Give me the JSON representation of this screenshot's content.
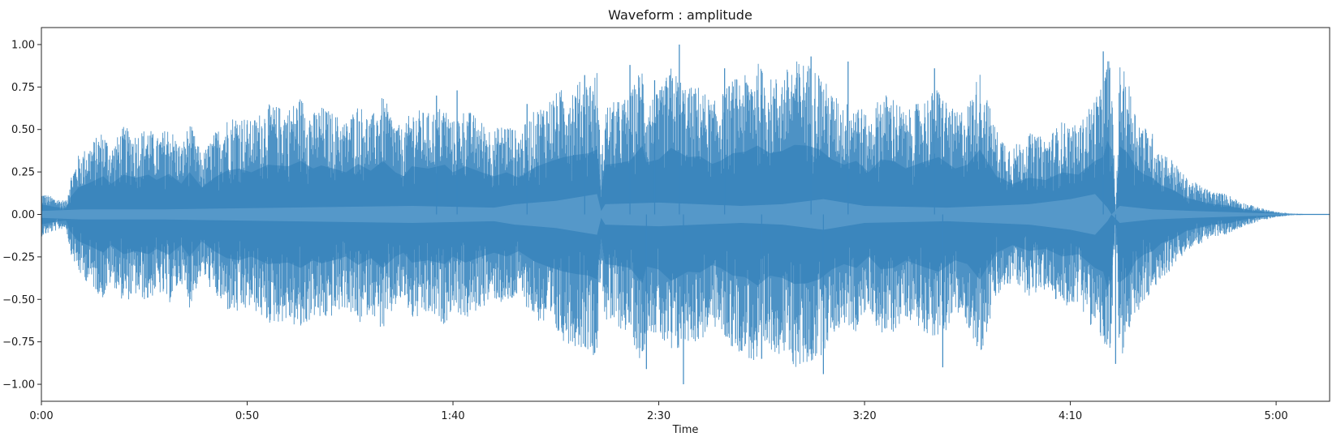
{
  "chart_data": {
    "type": "area",
    "title": "Waveform : amplitude",
    "xlabel": "Time",
    "ylabel": "",
    "x_unit": "seconds",
    "xlim": [
      0,
      313
    ],
    "ylim": [
      -1.1,
      1.1
    ],
    "x_ticks": [
      {
        "value": 0,
        "label": "0:00"
      },
      {
        "value": 50,
        "label": "0:50"
      },
      {
        "value": 100,
        "label": "1:40"
      },
      {
        "value": 150,
        "label": "2:30"
      },
      {
        "value": 200,
        "label": "3:20"
      },
      {
        "value": 250,
        "label": "4:10"
      },
      {
        "value": 300,
        "label": "5:00"
      }
    ],
    "y_ticks": [
      {
        "value": 1.0,
        "label": "1.00"
      },
      {
        "value": 0.75,
        "label": "0.75"
      },
      {
        "value": 0.5,
        "label": "0.50"
      },
      {
        "value": 0.25,
        "label": "0.25"
      },
      {
        "value": 0.0,
        "label": "0.00"
      },
      {
        "value": -0.25,
        "label": "−0.25"
      },
      {
        "value": -0.5,
        "label": "−0.50"
      },
      {
        "value": -0.75,
        "label": "−0.75"
      },
      {
        "value": -1.0,
        "label": "−1.00"
      }
    ],
    "grid": false,
    "series": [
      {
        "color": "#3a86bf",
        "envelope": {
          "x": [
            0,
            3,
            6,
            7,
            9,
            12,
            15,
            17,
            20,
            23,
            26,
            28,
            31,
            34,
            36,
            39,
            42,
            45,
            48,
            51,
            55,
            60,
            63,
            66,
            68,
            71,
            74,
            77,
            80,
            83,
            86,
            88,
            90,
            94,
            98,
            100,
            103,
            107,
            110,
            113,
            116,
            120,
            124,
            127,
            130,
            133,
            135,
            136,
            137,
            140,
            143,
            146,
            147,
            150,
            153,
            157,
            160,
            163,
            165,
            168,
            171,
            174,
            177,
            180,
            183,
            186,
            189,
            192,
            195,
            198,
            201,
            204,
            207,
            210,
            214,
            218,
            222,
            225,
            228,
            232,
            236,
            240,
            244,
            248,
            252,
            256,
            258,
            259,
            260,
            261,
            262,
            264,
            266,
            268,
            270,
            272,
            275,
            278,
            281,
            284,
            288,
            292,
            296,
            300,
            304,
            308,
            313
          ],
          "upper": [
            0.13,
            0.1,
            0.08,
            0.22,
            0.35,
            0.42,
            0.5,
            0.4,
            0.52,
            0.48,
            0.52,
            0.45,
            0.53,
            0.4,
            0.55,
            0.35,
            0.48,
            0.57,
            0.6,
            0.55,
            0.65,
            0.63,
            0.7,
            0.6,
            0.64,
            0.6,
            0.55,
            0.66,
            0.57,
            0.7,
            0.55,
            0.5,
            0.63,
            0.6,
            0.65,
            0.55,
            0.63,
            0.55,
            0.5,
            0.55,
            0.48,
            0.62,
            0.7,
            0.75,
            0.78,
            0.8,
            0.85,
            0.3,
            0.65,
            0.67,
            0.7,
            0.9,
            0.68,
            0.72,
            0.87,
            0.75,
            0.76,
            0.66,
            0.7,
            0.8,
            0.82,
            0.9,
            0.8,
            0.83,
            0.91,
            0.9,
            0.85,
            0.72,
            0.65,
            0.7,
            0.55,
            0.72,
            0.7,
            0.6,
            0.68,
            0.75,
            0.6,
            0.65,
            0.85,
            0.5,
            0.4,
            0.48,
            0.45,
            0.55,
            0.52,
            0.7,
            0.75,
            0.96,
            0.85,
            0.0,
            0.89,
            0.8,
            0.6,
            0.52,
            0.48,
            0.38,
            0.32,
            0.22,
            0.18,
            0.14,
            0.12,
            0.07,
            0.04,
            0.015,
            0.005,
            0.002,
            0.0
          ],
          "lower": [
            -0.13,
            -0.1,
            -0.08,
            -0.22,
            -0.35,
            -0.42,
            -0.5,
            -0.4,
            -0.52,
            -0.48,
            -0.52,
            -0.45,
            -0.53,
            -0.4,
            -0.55,
            -0.35,
            -0.48,
            -0.57,
            -0.6,
            -0.55,
            -0.65,
            -0.63,
            -0.7,
            -0.6,
            -0.64,
            -0.6,
            -0.55,
            -0.66,
            -0.57,
            -0.7,
            -0.55,
            -0.5,
            -0.63,
            -0.6,
            -0.65,
            -0.55,
            -0.63,
            -0.55,
            -0.5,
            -0.55,
            -0.48,
            -0.62,
            -0.7,
            -0.75,
            -0.78,
            -0.8,
            -0.85,
            -0.3,
            -0.65,
            -0.67,
            -0.7,
            -0.9,
            -0.68,
            -0.72,
            -0.87,
            -0.75,
            -0.76,
            -0.66,
            -0.7,
            -0.8,
            -0.82,
            -0.93,
            -0.8,
            -0.83,
            -0.91,
            -0.9,
            -0.85,
            -0.72,
            -0.65,
            -0.7,
            -0.55,
            -0.72,
            -0.7,
            -0.6,
            -0.68,
            -0.75,
            -0.6,
            -0.65,
            -0.85,
            -0.5,
            -0.4,
            -0.48,
            -0.45,
            -0.55,
            -0.52,
            -0.7,
            -0.75,
            -0.96,
            -0.85,
            0.0,
            -0.89,
            -0.8,
            -0.6,
            -0.52,
            -0.48,
            -0.38,
            -0.32,
            -0.22,
            -0.18,
            -0.14,
            -0.12,
            -0.07,
            -0.04,
            -0.015,
            -0.005,
            -0.002,
            0.0
          ]
        },
        "inner_envelope": {
          "x": [
            0,
            10,
            30,
            60,
            90,
            110,
            115,
            125,
            135,
            136,
            137,
            150,
            170,
            180,
            190,
            200,
            220,
            240,
            250,
            256,
            259,
            260,
            262,
            270,
            280,
            300,
            313
          ],
          "upper": [
            0.02,
            0.03,
            0.03,
            0.04,
            0.05,
            0.04,
            0.06,
            0.08,
            0.12,
            0.02,
            0.06,
            0.07,
            0.05,
            0.06,
            0.09,
            0.05,
            0.04,
            0.06,
            0.09,
            0.12,
            0.04,
            0.0,
            0.05,
            0.03,
            0.02,
            0.005,
            0.0
          ],
          "lower": [
            -0.02,
            -0.03,
            -0.03,
            -0.04,
            -0.05,
            -0.04,
            -0.06,
            -0.08,
            -0.12,
            -0.02,
            -0.06,
            -0.07,
            -0.05,
            -0.06,
            -0.09,
            -0.05,
            -0.04,
            -0.06,
            -0.09,
            -0.12,
            -0.04,
            0.0,
            -0.05,
            -0.03,
            -0.02,
            -0.005,
            0.0
          ]
        },
        "spikes": [
          {
            "x": 96,
            "y": 0.7
          },
          {
            "x": 101,
            "y": 0.73
          },
          {
            "x": 118,
            "y": 0.65
          },
          {
            "x": 132,
            "y": 0.82
          },
          {
            "x": 143,
            "y": 0.88
          },
          {
            "x": 149,
            "y": 0.79
          },
          {
            "x": 155,
            "y": 1.0
          },
          {
            "x": 156,
            "y": -1.0
          },
          {
            "x": 166,
            "y": 0.86
          },
          {
            "x": 187,
            "y": 0.93
          },
          {
            "x": 190,
            "y": -0.94
          },
          {
            "x": 196,
            "y": 0.9
          },
          {
            "x": 217,
            "y": 0.86
          },
          {
            "x": 219,
            "y": -0.9
          },
          {
            "x": 258,
            "y": 0.96
          },
          {
            "x": 261,
            "y": -0.88
          },
          {
            "x": 147,
            "y": -0.91
          },
          {
            "x": 175,
            "y": -0.85
          }
        ]
      }
    ]
  }
}
